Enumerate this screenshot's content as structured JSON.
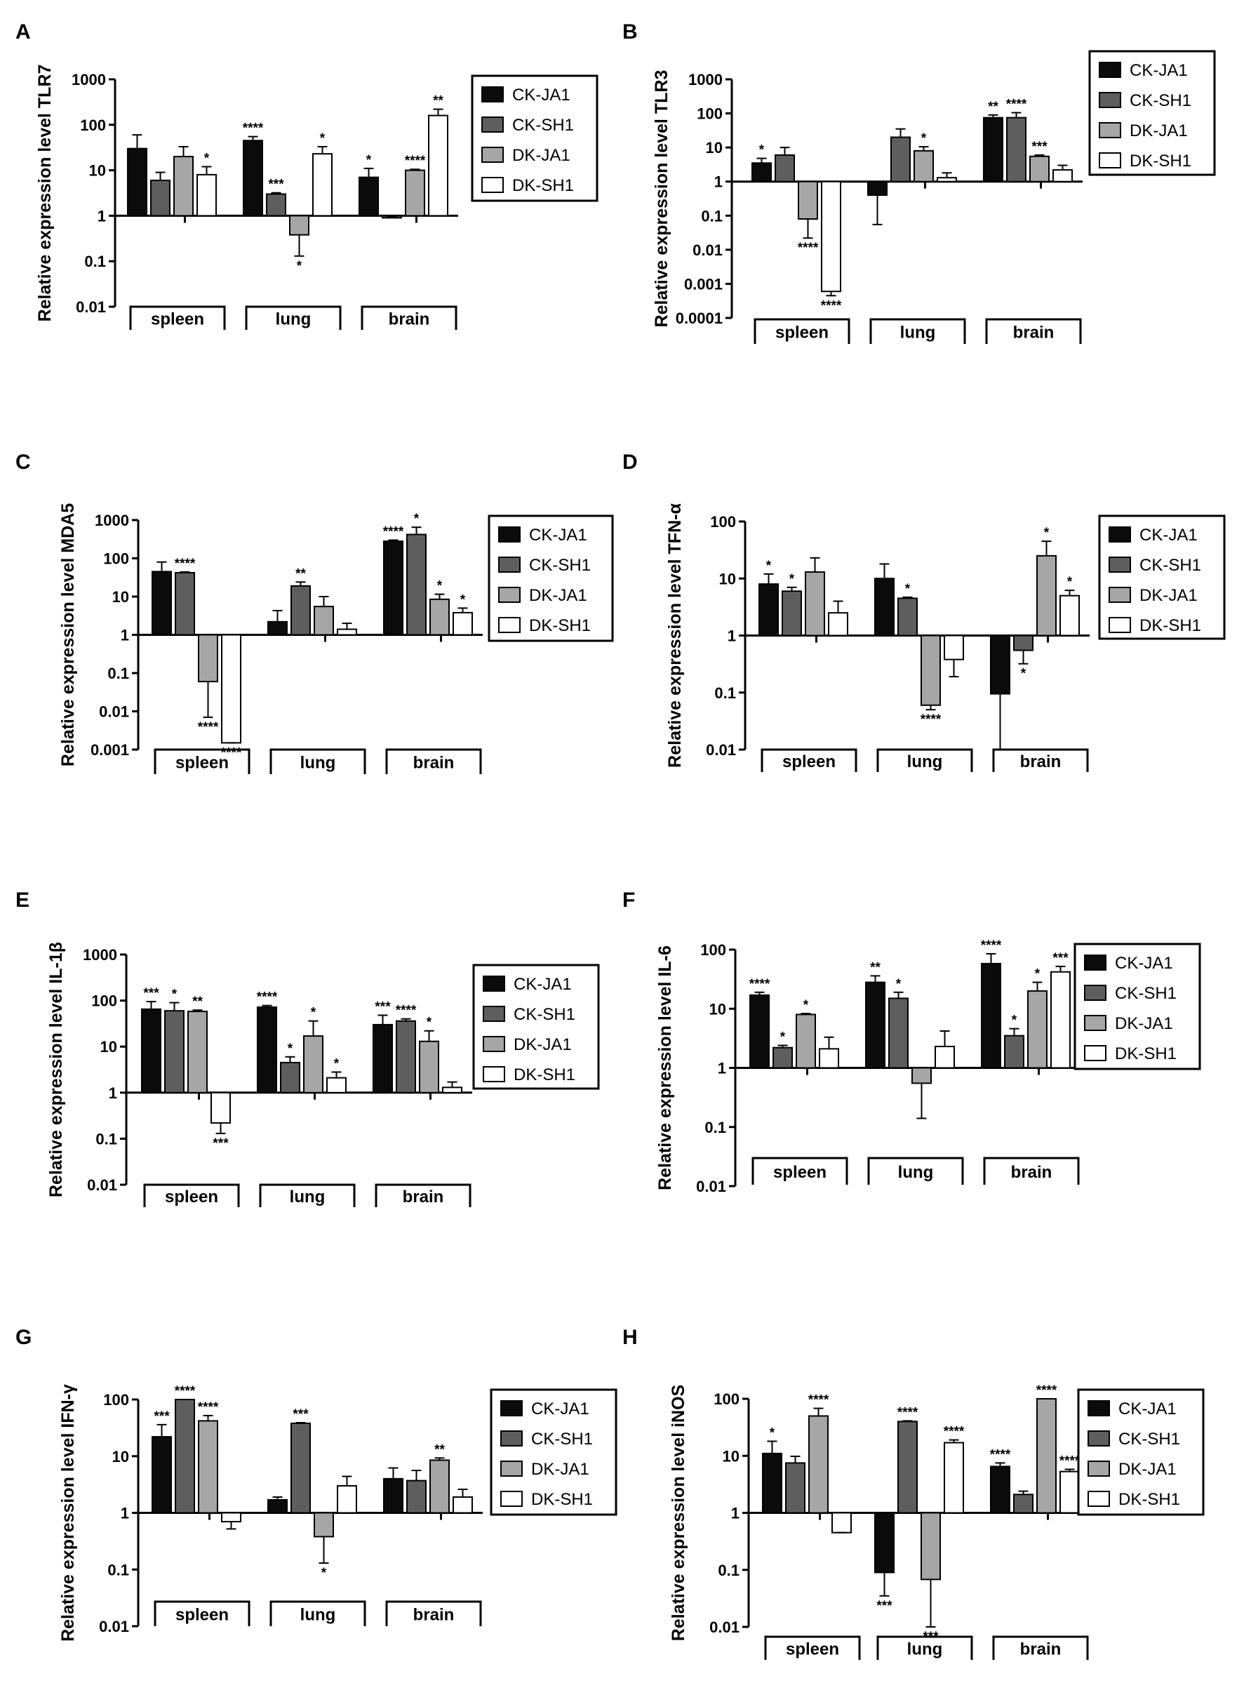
{
  "legend_labels": [
    "CK-JA1",
    "CK-SH1",
    "DK-JA1",
    "DK-SH1"
  ],
  "colors": {
    "CK-JA1": "#0b0b0b",
    "CK-SH1": "#5e5e5e",
    "DK-JA1": "#a6a6a6",
    "DK-SH1": "#ffffff",
    "stroke": "#000000"
  },
  "chart_data": [
    {
      "panel": "A",
      "type": "bar",
      "log_scale": true,
      "ylabel": "Relative expression level TLR7",
      "ylim": [
        0.01,
        1000
      ],
      "baseline": 1,
      "yticks": [
        0.01,
        0.1,
        1,
        10,
        100,
        1000
      ],
      "ytick_labels": [
        "0.01",
        "0.1",
        "1",
        "10",
        "100",
        "1000"
      ],
      "categories": [
        "spleen",
        "lung",
        "brain"
      ],
      "legend_position": "top-right",
      "series": [
        {
          "name": "CK-JA1",
          "values": [
            30,
            45,
            7
          ],
          "errors": [
            60,
            55,
            11
          ],
          "stars": [
            "",
            "****",
            "*"
          ]
        },
        {
          "name": "CK-SH1",
          "values": [
            6,
            3,
            0.9
          ],
          "errors": [
            9,
            3.2,
            0.95
          ],
          "stars": [
            "",
            "***",
            ""
          ]
        },
        {
          "name": "DK-JA1",
          "values": [
            20,
            0.38,
            10
          ],
          "errors": [
            33,
            0.13,
            10.5
          ],
          "stars": [
            "",
            "*",
            "****"
          ]
        },
        {
          "name": "DK-SH1",
          "values": [
            8,
            23,
            160
          ],
          "errors": [
            12,
            33,
            220
          ],
          "stars": [
            "*",
            "*",
            "**"
          ]
        }
      ]
    },
    {
      "panel": "B",
      "type": "bar",
      "log_scale": true,
      "ylabel": "Relative expression level TLR3",
      "ylim": [
        0.0001,
        1000
      ],
      "baseline": 1,
      "yticks": [
        0.0001,
        0.001,
        0.01,
        0.1,
        1,
        10,
        100,
        1000
      ],
      "ytick_labels": [
        "0.0001",
        "0.001",
        "0.01",
        "0.1",
        "1",
        "10",
        "100",
        "1000"
      ],
      "categories": [
        "spleen",
        "lung",
        "brain"
      ],
      "legend_position": "top-right",
      "series": [
        {
          "name": "CK-JA1",
          "values": [
            3.5,
            0.4,
            75
          ],
          "errors": [
            4.8,
            0.055,
            90
          ],
          "stars": [
            "*",
            "",
            "**"
          ]
        },
        {
          "name": "CK-SH1",
          "values": [
            6,
            20,
            75
          ],
          "errors": [
            10,
            35,
            105
          ],
          "stars": [
            "",
            "",
            "****"
          ]
        },
        {
          "name": "DK-JA1",
          "values": [
            0.08,
            8,
            5.5
          ],
          "errors": [
            0.022,
            10.5,
            6
          ],
          "stars": [
            "****",
            "*",
            "***"
          ]
        },
        {
          "name": "DK-SH1",
          "values": [
            0.0006,
            1.3,
            2.2
          ],
          "errors": [
            0.00045,
            1.8,
            3
          ],
          "stars": [
            "****",
            "",
            ""
          ]
        }
      ]
    },
    {
      "panel": "C",
      "type": "bar",
      "log_scale": true,
      "ylabel": "Relative expression level MDA5",
      "ylim": [
        0.001,
        1000
      ],
      "baseline": 1,
      "yticks": [
        0.001,
        0.01,
        0.1,
        1,
        10,
        100,
        1000
      ],
      "ytick_labels": [
        "0.001",
        "0.01",
        "0.1",
        "1",
        "10",
        "100",
        "1000"
      ],
      "categories": [
        "spleen",
        "lung",
        "brain"
      ],
      "legend_position": "top-right",
      "series": [
        {
          "name": "CK-JA1",
          "values": [
            45,
            2.2,
            280
          ],
          "errors": [
            80,
            4.3,
            300
          ],
          "stars": [
            "",
            "",
            "****"
          ]
        },
        {
          "name": "CK-SH1",
          "values": [
            42,
            19,
            420
          ],
          "errors": [
            44,
            24,
            650
          ],
          "stars": [
            "****",
            "**",
            "*"
          ]
        },
        {
          "name": "DK-JA1",
          "values": [
            0.06,
            5.5,
            8.5
          ],
          "errors": [
            0.007,
            10,
            11.5
          ],
          "stars": [
            "****",
            "",
            "*"
          ]
        },
        {
          "name": "DK-SH1",
          "values": [
            0.0015,
            1.4,
            3.8
          ],
          "errors": [
            0.0015,
            2,
            5
          ],
          "stars": [
            "****",
            "",
            "*"
          ]
        }
      ]
    },
    {
      "panel": "D",
      "type": "bar",
      "log_scale": true,
      "ylabel": "Relative expression level TFN-α",
      "ylim": [
        0.01,
        100
      ],
      "baseline": 1,
      "yticks": [
        0.01,
        0.1,
        1,
        10,
        100
      ],
      "ytick_labels": [
        "0.01",
        "0.1",
        "1",
        "10",
        "100"
      ],
      "categories": [
        "spleen",
        "lung",
        "brain"
      ],
      "legend_position": "top-right",
      "series": [
        {
          "name": "CK-JA1",
          "values": [
            8,
            10,
            0.095
          ],
          "errors": [
            12,
            18,
            0.01
          ],
          "stars": [
            "*",
            "",
            ""
          ]
        },
        {
          "name": "CK-SH1",
          "values": [
            6,
            4.5,
            0.55
          ],
          "errors": [
            7,
            4.7,
            0.32
          ],
          "stars": [
            "*",
            "*",
            "*"
          ]
        },
        {
          "name": "DK-JA1",
          "values": [
            13,
            0.06,
            25
          ],
          "errors": [
            23,
            0.05,
            45
          ],
          "stars": [
            "",
            "****",
            "*"
          ]
        },
        {
          "name": "DK-SH1",
          "values": [
            2.5,
            0.38,
            5
          ],
          "errors": [
            4,
            0.19,
            6.2
          ],
          "stars": [
            "",
            "",
            "*"
          ]
        }
      ]
    },
    {
      "panel": "E",
      "type": "bar",
      "log_scale": true,
      "ylabel": "Relative expression level IL-1β",
      "ylim": [
        0.01,
        1000
      ],
      "baseline": 1,
      "yticks": [
        0.01,
        0.1,
        1,
        10,
        100,
        1000
      ],
      "ytick_labels": [
        "0.01",
        "0.1",
        "1",
        "10",
        "100",
        "1000"
      ],
      "categories": [
        "spleen",
        "lung",
        "brain"
      ],
      "legend_position": "top-right",
      "series": [
        {
          "name": "CK-JA1",
          "values": [
            65,
            72,
            30
          ],
          "errors": [
            95,
            78,
            48
          ],
          "stars": [
            "***",
            "****",
            "***"
          ]
        },
        {
          "name": "CK-SH1",
          "values": [
            60,
            4.5,
            36
          ],
          "errors": [
            90,
            6,
            40
          ],
          "stars": [
            "*",
            "*",
            "****"
          ]
        },
        {
          "name": "DK-JA1",
          "values": [
            58,
            17,
            13
          ],
          "errors": [
            62,
            36,
            22
          ],
          "stars": [
            "**",
            "*",
            "*"
          ]
        },
        {
          "name": "DK-SH1",
          "values": [
            0.22,
            2.1,
            1.3
          ],
          "errors": [
            0.13,
            2.8,
            1.7
          ],
          "stars": [
            "***",
            "*",
            ""
          ]
        }
      ]
    },
    {
      "panel": "F",
      "type": "bar",
      "log_scale": true,
      "ylabel": "Relative expression level IL-6",
      "ylim": [
        0.01,
        100
      ],
      "baseline": 1,
      "yticks": [
        0.01,
        0.1,
        1,
        10,
        100
      ],
      "ytick_labels": [
        "0.01",
        "0.1",
        "1",
        "10",
        "100"
      ],
      "categories": [
        "spleen",
        "lung",
        "brain"
      ],
      "legend_position": "top-right",
      "series": [
        {
          "name": "CK-JA1",
          "values": [
            17,
            28,
            58
          ],
          "errors": [
            19,
            36,
            85
          ],
          "stars": [
            "****",
            "**",
            "****"
          ]
        },
        {
          "name": "CK-SH1",
          "values": [
            2.2,
            15,
            3.5
          ],
          "errors": [
            2.4,
            19,
            4.6
          ],
          "stars": [
            "*",
            "*",
            "*"
          ]
        },
        {
          "name": "DK-JA1",
          "values": [
            8,
            0.55,
            20
          ],
          "errors": [
            8.3,
            0.14,
            28
          ],
          "stars": [
            "*",
            "",
            "*"
          ]
        },
        {
          "name": "DK-SH1",
          "values": [
            2.1,
            2.3,
            42
          ],
          "errors": [
            3.3,
            4.2,
            52
          ],
          "stars": [
            "",
            "",
            "***"
          ]
        }
      ]
    },
    {
      "panel": "G",
      "type": "bar",
      "log_scale": true,
      "ylabel": "Relative expression level IFN-γ",
      "ylim": [
        0.01,
        100
      ],
      "baseline": 1,
      "yticks": [
        0.01,
        0.1,
        1,
        10,
        100
      ],
      "ytick_labels": [
        "0.01",
        "0.1",
        "1",
        "10",
        "100"
      ],
      "categories": [
        "spleen",
        "lung",
        "brain"
      ],
      "legend_position": "top-right",
      "series": [
        {
          "name": "CK-JA1",
          "values": [
            22,
            1.7,
            4
          ],
          "errors": [
            36,
            1.9,
            6.2
          ],
          "stars": [
            "***",
            "",
            ""
          ]
        },
        {
          "name": "CK-SH1",
          "values": [
            100,
            38,
            3.7
          ],
          "errors": [
            100,
            39,
            5.6
          ],
          "stars": [
            "****",
            "***",
            ""
          ]
        },
        {
          "name": "DK-JA1",
          "values": [
            42,
            0.38,
            8.5
          ],
          "errors": [
            52,
            0.13,
            9.3
          ],
          "stars": [
            "****",
            "*",
            "**"
          ]
        },
        {
          "name": "DK-SH1",
          "values": [
            0.7,
            3,
            1.9
          ],
          "errors": [
            0.52,
            4.4,
            2.6
          ],
          "stars": [
            "",
            "",
            ""
          ]
        }
      ]
    },
    {
      "panel": "H",
      "type": "bar",
      "log_scale": true,
      "ylabel": "Relative expression level iNOS",
      "ylim": [
        0.01,
        100
      ],
      "baseline": 1,
      "yticks": [
        0.01,
        0.1,
        1,
        10,
        100
      ],
      "ytick_labels": [
        "0.01",
        "0.1",
        "1",
        "10",
        "100"
      ],
      "categories": [
        "spleen",
        "lung",
        "brain"
      ],
      "legend_position": "top-right",
      "series": [
        {
          "name": "CK-JA1",
          "values": [
            11,
            0.09,
            6.5
          ],
          "errors": [
            18,
            0.035,
            7.5
          ],
          "stars": [
            "*",
            "***",
            "****"
          ]
        },
        {
          "name": "CK-SH1",
          "values": [
            7.5,
            40,
            2.1
          ],
          "errors": [
            9.8,
            41,
            2.4
          ],
          "stars": [
            "",
            "****",
            ""
          ]
        },
        {
          "name": "DK-JA1",
          "values": [
            50,
            0.068,
            100
          ],
          "errors": [
            68,
            0.01,
            100
          ],
          "stars": [
            "****",
            "***",
            "****"
          ]
        },
        {
          "name": "DK-SH1",
          "values": [
            0.45,
            17,
            5.3
          ],
          "errors": [
            0.45,
            19,
            5.8
          ],
          "stars": [
            "",
            "****",
            "****"
          ]
        }
      ]
    }
  ]
}
